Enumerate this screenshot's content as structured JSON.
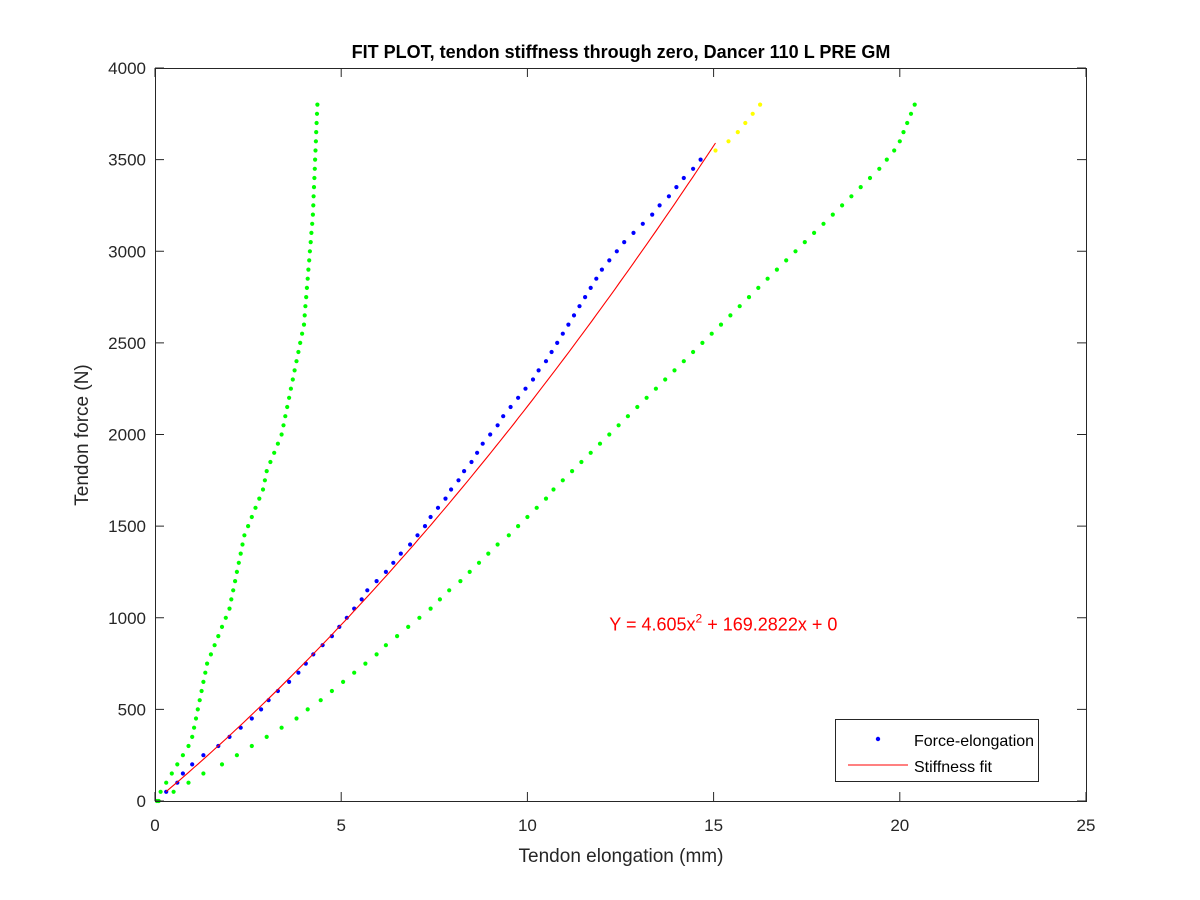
{
  "chart_data": {
    "type": "scatter",
    "title": "FIT PLOT, tendon stiffness through zero, Dancer 110 L PRE GM",
    "xlabel": "Tendon elongation (mm)",
    "ylabel": "Tendon force (N)",
    "xlim": [
      0,
      25
    ],
    "ylim": [
      0,
      4000
    ],
    "xticks": [
      0,
      5,
      10,
      15,
      20,
      25
    ],
    "xtick_labels": [
      "0",
      "5",
      "10",
      "15",
      "20",
      "25"
    ],
    "yticks": [
      0,
      500,
      1000,
      1500,
      2000,
      2500,
      3000,
      3500,
      4000
    ],
    "ytick_labels": [
      "0",
      "500",
      "1000",
      "1500",
      "2000",
      "2500",
      "3000",
      "3500",
      "4000"
    ],
    "grid": false,
    "legend_position": "bottom-right",
    "annotation": {
      "text_main": "Y = 4.605x",
      "text_sup": "2",
      "text_rest": " + 169.2822x + 0",
      "x": 12.2,
      "y": 930,
      "color": "#ff0000"
    },
    "fit": {
      "name": "Stiffness fit",
      "a": 4.605,
      "b": 169.2822,
      "c": 0,
      "x_start": 0.3,
      "x_end": 15.05,
      "color": "#ff0000"
    },
    "series": [
      {
        "name": "Force-elongation",
        "color": "#0000ff",
        "points": [
          [
            0.3,
            50
          ],
          [
            0.6,
            100
          ],
          [
            0.75,
            150
          ],
          [
            1.0,
            200
          ],
          [
            1.3,
            250
          ],
          [
            1.7,
            300
          ],
          [
            2.0,
            350
          ],
          [
            2.3,
            400
          ],
          [
            2.6,
            450
          ],
          [
            2.85,
            500
          ],
          [
            3.05,
            550
          ],
          [
            3.3,
            600
          ],
          [
            3.6,
            650
          ],
          [
            3.85,
            700
          ],
          [
            4.05,
            750
          ],
          [
            4.25,
            800
          ],
          [
            4.5,
            850
          ],
          [
            4.75,
            900
          ],
          [
            4.95,
            950
          ],
          [
            5.15,
            1000
          ],
          [
            5.35,
            1050
          ],
          [
            5.55,
            1100
          ],
          [
            5.7,
            1150
          ],
          [
            5.95,
            1200
          ],
          [
            6.2,
            1250
          ],
          [
            6.4,
            1300
          ],
          [
            6.6,
            1350
          ],
          [
            6.85,
            1400
          ],
          [
            7.05,
            1450
          ],
          [
            7.25,
            1500
          ],
          [
            7.4,
            1550
          ],
          [
            7.6,
            1600
          ],
          [
            7.8,
            1650
          ],
          [
            7.95,
            1700
          ],
          [
            8.15,
            1750
          ],
          [
            8.3,
            1800
          ],
          [
            8.5,
            1850
          ],
          [
            8.65,
            1900
          ],
          [
            8.8,
            1950
          ],
          [
            9.0,
            2000
          ],
          [
            9.2,
            2050
          ],
          [
            9.35,
            2100
          ],
          [
            9.55,
            2150
          ],
          [
            9.75,
            2200
          ],
          [
            9.95,
            2250
          ],
          [
            10.15,
            2300
          ],
          [
            10.3,
            2350
          ],
          [
            10.5,
            2400
          ],
          [
            10.65,
            2450
          ],
          [
            10.8,
            2500
          ],
          [
            10.95,
            2550
          ],
          [
            11.1,
            2600
          ],
          [
            11.25,
            2650
          ],
          [
            11.4,
            2700
          ],
          [
            11.55,
            2750
          ],
          [
            11.7,
            2800
          ],
          [
            11.85,
            2850
          ],
          [
            12.0,
            2900
          ],
          [
            12.2,
            2950
          ],
          [
            12.4,
            3000
          ],
          [
            12.6,
            3050
          ],
          [
            12.85,
            3100
          ],
          [
            13.1,
            3150
          ],
          [
            13.35,
            3200
          ],
          [
            13.55,
            3250
          ],
          [
            13.8,
            3300
          ],
          [
            14.0,
            3350
          ],
          [
            14.2,
            3400
          ],
          [
            14.45,
            3450
          ],
          [
            14.65,
            3500
          ]
        ]
      },
      {
        "name": "",
        "color": "#00ff00",
        "points": [
          [
            0.05,
            0
          ],
          [
            0.15,
            50
          ],
          [
            0.3,
            100
          ],
          [
            0.45,
            150
          ],
          [
            0.6,
            200
          ],
          [
            0.75,
            250
          ],
          [
            0.9,
            300
          ],
          [
            1.0,
            350
          ],
          [
            1.05,
            400
          ],
          [
            1.1,
            450
          ],
          [
            1.15,
            500
          ],
          [
            1.2,
            550
          ],
          [
            1.25,
            600
          ],
          [
            1.3,
            650
          ],
          [
            1.35,
            700
          ],
          [
            1.4,
            750
          ],
          [
            1.5,
            800
          ],
          [
            1.6,
            850
          ],
          [
            1.7,
            900
          ],
          [
            1.8,
            950
          ],
          [
            1.9,
            1000
          ],
          [
            2.0,
            1050
          ],
          [
            2.05,
            1100
          ],
          [
            2.1,
            1150
          ],
          [
            2.15,
            1200
          ],
          [
            2.2,
            1250
          ],
          [
            2.25,
            1300
          ],
          [
            2.3,
            1350
          ],
          [
            2.35,
            1400
          ],
          [
            2.4,
            1450
          ],
          [
            2.5,
            1500
          ],
          [
            2.6,
            1550
          ],
          [
            2.7,
            1600
          ],
          [
            2.8,
            1650
          ],
          [
            2.9,
            1700
          ],
          [
            2.95,
            1750
          ],
          [
            3.0,
            1800
          ],
          [
            3.1,
            1850
          ],
          [
            3.2,
            1900
          ],
          [
            3.3,
            1950
          ],
          [
            3.4,
            2000
          ],
          [
            3.45,
            2050
          ],
          [
            3.5,
            2100
          ],
          [
            3.55,
            2150
          ],
          [
            3.6,
            2200
          ],
          [
            3.65,
            2250
          ],
          [
            3.7,
            2300
          ],
          [
            3.75,
            2350
          ],
          [
            3.8,
            2400
          ],
          [
            3.85,
            2450
          ],
          [
            3.9,
            2500
          ],
          [
            3.95,
            2550
          ],
          [
            4.0,
            2600
          ],
          [
            4.02,
            2650
          ],
          [
            4.04,
            2700
          ],
          [
            4.06,
            2750
          ],
          [
            4.08,
            2800
          ],
          [
            4.1,
            2850
          ],
          [
            4.12,
            2900
          ],
          [
            4.14,
            2950
          ],
          [
            4.16,
            3000
          ],
          [
            4.18,
            3050
          ],
          [
            4.2,
            3100
          ],
          [
            4.22,
            3150
          ],
          [
            4.24,
            3200
          ],
          [
            4.25,
            3250
          ],
          [
            4.26,
            3300
          ],
          [
            4.27,
            3350
          ],
          [
            4.28,
            3400
          ],
          [
            4.29,
            3450
          ],
          [
            4.3,
            3500
          ],
          [
            4.31,
            3550
          ],
          [
            4.32,
            3600
          ],
          [
            4.33,
            3650
          ],
          [
            4.34,
            3700
          ],
          [
            4.35,
            3750
          ],
          [
            4.36,
            3800
          ]
        ]
      },
      {
        "name": "",
        "color": "#00ff00",
        "points": [
          [
            0.1,
            0
          ],
          [
            0.5,
            50
          ],
          [
            0.9,
            100
          ],
          [
            1.3,
            150
          ],
          [
            1.8,
            200
          ],
          [
            2.2,
            250
          ],
          [
            2.6,
            300
          ],
          [
            3.0,
            350
          ],
          [
            3.4,
            400
          ],
          [
            3.8,
            450
          ],
          [
            4.1,
            500
          ],
          [
            4.45,
            550
          ],
          [
            4.75,
            600
          ],
          [
            5.05,
            650
          ],
          [
            5.35,
            700
          ],
          [
            5.65,
            750
          ],
          [
            5.95,
            800
          ],
          [
            6.2,
            850
          ],
          [
            6.5,
            900
          ],
          [
            6.8,
            950
          ],
          [
            7.1,
            1000
          ],
          [
            7.4,
            1050
          ],
          [
            7.65,
            1100
          ],
          [
            7.9,
            1150
          ],
          [
            8.2,
            1200
          ],
          [
            8.45,
            1250
          ],
          [
            8.7,
            1300
          ],
          [
            8.95,
            1350
          ],
          [
            9.2,
            1400
          ],
          [
            9.5,
            1450
          ],
          [
            9.75,
            1500
          ],
          [
            10.0,
            1550
          ],
          [
            10.25,
            1600
          ],
          [
            10.5,
            1650
          ],
          [
            10.7,
            1700
          ],
          [
            10.95,
            1750
          ],
          [
            11.2,
            1800
          ],
          [
            11.45,
            1850
          ],
          [
            11.7,
            1900
          ],
          [
            11.95,
            1950
          ],
          [
            12.2,
            2000
          ],
          [
            12.45,
            2050
          ],
          [
            12.7,
            2100
          ],
          [
            12.95,
            2150
          ],
          [
            13.2,
            2200
          ],
          [
            13.45,
            2250
          ],
          [
            13.7,
            2300
          ],
          [
            13.95,
            2350
          ],
          [
            14.2,
            2400
          ],
          [
            14.45,
            2450
          ],
          [
            14.7,
            2500
          ],
          [
            14.95,
            2550
          ],
          [
            15.2,
            2600
          ],
          [
            15.45,
            2650
          ],
          [
            15.7,
            2700
          ],
          [
            15.95,
            2750
          ],
          [
            16.2,
            2800
          ],
          [
            16.45,
            2850
          ],
          [
            16.7,
            2900
          ],
          [
            16.95,
            2950
          ],
          [
            17.2,
            3000
          ],
          [
            17.45,
            3050
          ],
          [
            17.7,
            3100
          ],
          [
            17.95,
            3150
          ],
          [
            18.2,
            3200
          ],
          [
            18.45,
            3250
          ],
          [
            18.7,
            3300
          ],
          [
            18.95,
            3350
          ],
          [
            19.2,
            3400
          ],
          [
            19.45,
            3450
          ],
          [
            19.65,
            3500
          ],
          [
            19.85,
            3550
          ],
          [
            20.0,
            3600
          ],
          [
            20.1,
            3650
          ],
          [
            20.2,
            3700
          ],
          [
            20.3,
            3750
          ],
          [
            20.4,
            3800
          ]
        ]
      },
      {
        "name": "",
        "color": "#ffff00",
        "points": [
          [
            15.05,
            3550
          ],
          [
            15.4,
            3600
          ],
          [
            15.65,
            3650
          ],
          [
            15.85,
            3700
          ],
          [
            16.05,
            3750
          ],
          [
            16.25,
            3800
          ]
        ]
      }
    ]
  }
}
